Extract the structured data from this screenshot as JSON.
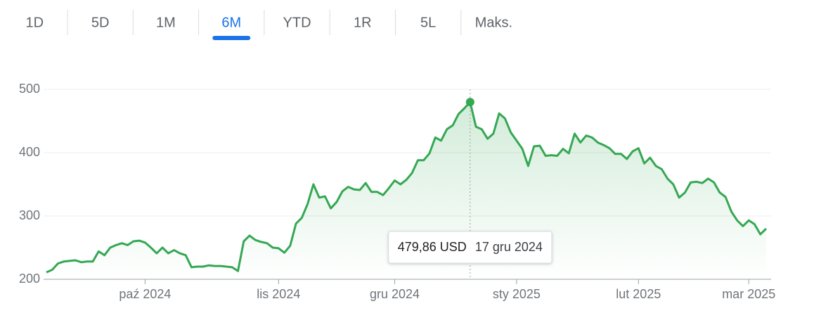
{
  "range_tabs": {
    "options": [
      "1D",
      "5D",
      "1M",
      "6M",
      "YTD",
      "1R",
      "5L",
      "Maks."
    ],
    "selected": 3
  },
  "chart_data": {
    "type": "line",
    "categories": [
      null,
      null,
      null,
      null,
      null,
      null,
      null,
      null,
      null,
      null,
      null,
      null,
      null,
      null,
      null,
      null,
      null,
      "paź 2024",
      null,
      null,
      null,
      null,
      null,
      null,
      null,
      null,
      null,
      null,
      null,
      null,
      null,
      null,
      null,
      null,
      null,
      null,
      null,
      null,
      null,
      null,
      "lis 2024",
      null,
      null,
      null,
      null,
      null,
      null,
      null,
      null,
      null,
      null,
      null,
      null,
      null,
      null,
      null,
      null,
      null,
      null,
      null,
      "gru 2024",
      null,
      null,
      null,
      null,
      null,
      null,
      null,
      null,
      null,
      null,
      null,
      null,
      null,
      null,
      null,
      null,
      null,
      null,
      null,
      null,
      "sty 2025",
      null,
      null,
      null,
      null,
      null,
      null,
      null,
      null,
      null,
      null,
      null,
      null,
      null,
      null,
      null,
      null,
      null,
      null,
      null,
      null,
      "lut 2025",
      null,
      null,
      null,
      null,
      null,
      null,
      null,
      null,
      null,
      null,
      null,
      null,
      null,
      null,
      null,
      null,
      null,
      null,
      "mar 2025",
      null,
      null,
      null
    ],
    "values": [
      211,
      215,
      225,
      228,
      229,
      230,
      227,
      228,
      228,
      244,
      238,
      250,
      254,
      257,
      254,
      260,
      261,
      258,
      250,
      241,
      250,
      241,
      246,
      241,
      238,
      219,
      220,
      220,
      222,
      221,
      221,
      220,
      219,
      213,
      260,
      269,
      262,
      259,
      257,
      250,
      249,
      242,
      253,
      288,
      297,
      319,
      350,
      329,
      331,
      312,
      322,
      339,
      346,
      342,
      341,
      352,
      338,
      338,
      333,
      344,
      356,
      350,
      357,
      368,
      388,
      388,
      399,
      424,
      419,
      437,
      443,
      461,
      470,
      479.86,
      441,
      437,
      422,
      430,
      462,
      454,
      432,
      419,
      406,
      379,
      410,
      411,
      395,
      396,
      395,
      406,
      399,
      430,
      416,
      427,
      424,
      416,
      412,
      407,
      398,
      398,
      390,
      402,
      407,
      383,
      392,
      379,
      374,
      359,
      350,
      329,
      337,
      353,
      354,
      352,
      359,
      353,
      337,
      330,
      307,
      293,
      284,
      293,
      287,
      271,
      280
    ],
    "value_labels": [
      null,
      null,
      null,
      null,
      null,
      null,
      null,
      null,
      null,
      null,
      null,
      null,
      null,
      null,
      null,
      null,
      null,
      null,
      null,
      null,
      null,
      null,
      null,
      null,
      null,
      null,
      null,
      null,
      null,
      null,
      null,
      null,
      null,
      null,
      null,
      null,
      null,
      null,
      null,
      null,
      null,
      null,
      null,
      null,
      null,
      null,
      null,
      null,
      null,
      null,
      null,
      null,
      null,
      null,
      null,
      null,
      null,
      null,
      null,
      null,
      null,
      null,
      null,
      null,
      null,
      null,
      null,
      null,
      null,
      null,
      null,
      null,
      null,
      "479,86 USD",
      null,
      null,
      null,
      null,
      null,
      null,
      null,
      null,
      null,
      null,
      null,
      null,
      null,
      null,
      null,
      null,
      null,
      null,
      null,
      null,
      null,
      null,
      null,
      null,
      null,
      null,
      null,
      null,
      null,
      null,
      null,
      null,
      null,
      null,
      null,
      null,
      null,
      null,
      null,
      null,
      null,
      null,
      null,
      null,
      null,
      null,
      null,
      null,
      null,
      null,
      null
    ],
    "tooltip_date": "17 gru 2024",
    "color": "#34a853",
    "ylim": [
      200,
      500
    ],
    "yticks": [
      200,
      300,
      400,
      500
    ],
    "grid": true
  }
}
